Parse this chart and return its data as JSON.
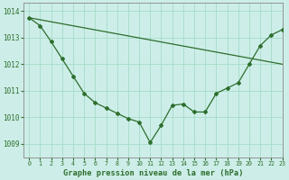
{
  "title": "Graphe pression niveau de la mer (hPa)",
  "background_color": "#cdeee8",
  "grid_color": "#aaddcc",
  "line_color": "#2d6e2d",
  "marker_color": "#2d6e2d",
  "xlim": [
    -0.5,
    23
  ],
  "ylim": [
    1008.5,
    1014.3
  ],
  "yticks": [
    1009,
    1010,
    1011,
    1012,
    1013,
    1014
  ],
  "xticks": [
    0,
    1,
    2,
    3,
    4,
    5,
    6,
    7,
    8,
    9,
    10,
    11,
    12,
    13,
    14,
    15,
    16,
    17,
    18,
    19,
    20,
    21,
    22,
    23
  ],
  "series1_x": [
    0,
    23
  ],
  "series1_y": [
    1013.75,
    1012.0
  ],
  "series2": [
    1013.75,
    1013.45,
    1012.85,
    1012.2,
    1011.55,
    1010.9,
    1010.55,
    1010.35,
    1010.15,
    1009.95,
    1009.82,
    1009.05,
    1009.7,
    1010.45,
    1010.5,
    1010.2,
    1010.2,
    1010.9,
    1011.1,
    1011.3,
    1012.0,
    1012.7,
    1013.1,
    1013.3
  ]
}
